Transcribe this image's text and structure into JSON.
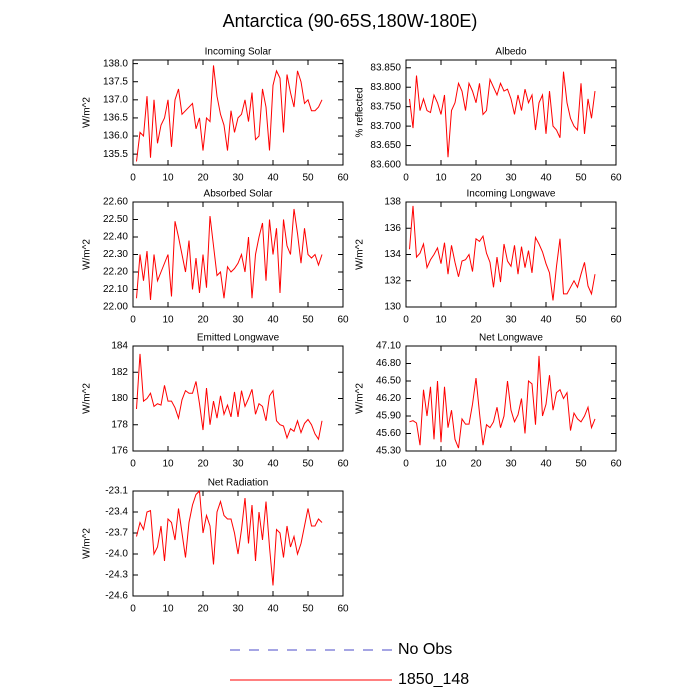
{
  "title": "Antarctica (90-65S,180W-180E)",
  "legend": [
    {
      "label": "No Obs",
      "color": "#4b4bc8",
      "dash": true
    },
    {
      "label": "1850_148",
      "color": "#ff0000",
      "dash": false
    }
  ],
  "chart_data": [
    {
      "type": "line",
      "title": "Incoming Solar",
      "ylabel": "W/m^2",
      "color": "#ff0000",
      "x": [
        1,
        2,
        3,
        4,
        5,
        6,
        7,
        8,
        9,
        10,
        11,
        12,
        13,
        14,
        15,
        16,
        17,
        18,
        19,
        20,
        21,
        22,
        23,
        24,
        25,
        26,
        27,
        28,
        29,
        30,
        31,
        32,
        33,
        34,
        35,
        36,
        37,
        38,
        39,
        40,
        41,
        42,
        43,
        44,
        45,
        46,
        47,
        48,
        49,
        50,
        51,
        52,
        53,
        54
      ],
      "values": [
        135.3,
        136.1,
        136.0,
        137.1,
        135.4,
        137.0,
        135.8,
        136.3,
        136.5,
        137.0,
        135.7,
        137.0,
        137.3,
        136.6,
        136.7,
        136.8,
        136.9,
        136.2,
        136.5,
        135.6,
        136.5,
        136.4,
        137.95,
        137.1,
        136.6,
        136.3,
        135.6,
        136.7,
        136.1,
        136.5,
        136.6,
        137.0,
        136.4,
        137.2,
        135.9,
        136.0,
        137.3,
        136.8,
        135.6,
        137.4,
        137.8,
        137.6,
        136.1,
        137.7,
        137.2,
        136.8,
        137.8,
        137.5,
        136.9,
        137.0,
        136.7,
        136.7,
        136.8,
        137.0
      ],
      "xlim": [
        0,
        60
      ],
      "xticks": [
        0,
        10,
        20,
        30,
        40,
        50,
        60
      ],
      "ylim": [
        135.2,
        138.1
      ],
      "yticks": [
        135.5,
        {
          "value": 136,
          "label": "136.0"
        },
        136.5,
        {
          "value": 137,
          "label": "137.0"
        },
        137.5,
        {
          "value": 138,
          "label": "138.0"
        }
      ]
    },
    {
      "type": "line",
      "title": "Albedo",
      "ylabel": "% reflected",
      "color": "#ff0000",
      "x": [
        1,
        2,
        3,
        4,
        5,
        6,
        7,
        8,
        9,
        10,
        11,
        12,
        13,
        14,
        15,
        16,
        17,
        18,
        19,
        20,
        21,
        22,
        23,
        24,
        25,
        26,
        27,
        28,
        29,
        30,
        31,
        32,
        33,
        34,
        35,
        36,
        37,
        38,
        39,
        40,
        41,
        42,
        43,
        44,
        45,
        46,
        47,
        48,
        49,
        50,
        51,
        52,
        53,
        54
      ],
      "values": [
        83.77,
        83.695,
        83.83,
        83.74,
        83.77,
        83.74,
        83.735,
        83.78,
        83.76,
        83.73,
        83.78,
        83.62,
        83.74,
        83.76,
        83.81,
        83.79,
        83.74,
        83.81,
        83.79,
        83.76,
        83.81,
        83.73,
        83.74,
        83.82,
        83.8,
        83.78,
        83.81,
        83.79,
        83.795,
        83.77,
        83.73,
        83.78,
        83.74,
        83.795,
        83.76,
        83.78,
        83.69,
        83.76,
        83.78,
        83.68,
        83.79,
        83.7,
        83.69,
        83.67,
        83.84,
        83.76,
        83.72,
        83.7,
        83.69,
        83.81,
        83.68,
        83.77,
        83.72,
        83.79
      ],
      "xlim": [
        0,
        60
      ],
      "xticks": [
        0,
        10,
        20,
        30,
        40,
        50,
        60
      ],
      "ylim": [
        83.6,
        83.87
      ],
      "yticks": [
        {
          "value": 83.6,
          "label": "83.600"
        },
        {
          "value": 83.65,
          "label": "83.650"
        },
        {
          "value": 83.7,
          "label": "83.700"
        },
        {
          "value": 83.75,
          "label": "83.750"
        },
        {
          "value": 83.8,
          "label": "83.800"
        },
        {
          "value": 83.85,
          "label": "83.850"
        }
      ]
    },
    {
      "type": "line",
      "title": "Absorbed Solar",
      "ylabel": "W/m^2",
      "color": "#ff0000",
      "x": [
        1,
        2,
        3,
        4,
        5,
        6,
        7,
        8,
        9,
        10,
        11,
        12,
        13,
        14,
        15,
        16,
        17,
        18,
        19,
        20,
        21,
        22,
        23,
        24,
        25,
        26,
        27,
        28,
        29,
        30,
        31,
        32,
        33,
        34,
        35,
        36,
        37,
        38,
        39,
        40,
        41,
        42,
        43,
        44,
        45,
        46,
        47,
        48,
        49,
        50,
        51,
        52,
        53,
        54
      ],
      "values": [
        22.05,
        22.3,
        22.15,
        22.32,
        22.04,
        22.3,
        22.15,
        22.2,
        22.25,
        22.3,
        22.06,
        22.49,
        22.4,
        22.3,
        22.2,
        22.38,
        22.1,
        22.28,
        22.08,
        22.3,
        22.11,
        22.52,
        22.35,
        22.18,
        22.2,
        22.05,
        22.23,
        22.2,
        22.22,
        22.25,
        22.3,
        22.2,
        22.4,
        22.05,
        22.3,
        22.4,
        22.48,
        22.15,
        22.5,
        22.3,
        22.45,
        22.08,
        22.5,
        22.35,
        22.3,
        22.56,
        22.42,
        22.25,
        22.45,
        22.3,
        22.28,
        22.3,
        22.24,
        22.3
      ],
      "xlim": [
        0,
        60
      ],
      "xticks": [
        0,
        10,
        20,
        30,
        40,
        50,
        60
      ],
      "ylim": [
        22.0,
        22.6
      ],
      "yticks": [
        {
          "value": 22.0,
          "label": "22.00"
        },
        {
          "value": 22.1,
          "label": "22.10"
        },
        {
          "value": 22.2,
          "label": "22.20"
        },
        {
          "value": 22.3,
          "label": "22.30"
        },
        {
          "value": 22.4,
          "label": "22.40"
        },
        {
          "value": 22.5,
          "label": "22.50"
        },
        {
          "value": 22.6,
          "label": "22.60"
        }
      ]
    },
    {
      "type": "line",
      "title": "Incoming Longwave",
      "ylabel": "W/m^2",
      "color": "#ff0000",
      "x": [
        1,
        2,
        3,
        4,
        5,
        6,
        7,
        8,
        9,
        10,
        11,
        12,
        13,
        14,
        15,
        16,
        17,
        18,
        19,
        20,
        21,
        22,
        23,
        24,
        25,
        26,
        27,
        28,
        29,
        30,
        31,
        32,
        33,
        34,
        35,
        36,
        37,
        38,
        39,
        40,
        41,
        42,
        43,
        44,
        45,
        46,
        47,
        48,
        49,
        50,
        51,
        52,
        53,
        54
      ],
      "values": [
        134.4,
        137.7,
        133.8,
        134.1,
        134.8,
        133.0,
        133.6,
        134.0,
        134.5,
        133.3,
        134.9,
        132.5,
        134.7,
        133.4,
        132.3,
        133.5,
        133.6,
        134.0,
        132.7,
        135.2,
        135.0,
        135.4,
        134.1,
        133.4,
        131.5,
        133.8,
        131.9,
        134.8,
        133.5,
        133.1,
        134.7,
        132.5,
        134.6,
        133.0,
        134.3,
        132.6,
        135.3,
        134.8,
        134.2,
        133.3,
        132.6,
        130.5,
        133.1,
        135.2,
        131.0,
        131.0,
        131.5,
        132.0,
        131.5,
        132.5,
        133.4,
        131.6,
        131.0,
        132.5
      ],
      "xlim": [
        0,
        60
      ],
      "xticks": [
        0,
        10,
        20,
        30,
        40,
        50,
        60
      ],
      "ylim": [
        130,
        138
      ],
      "yticks": [
        130,
        132,
        134,
        136,
        138
      ]
    },
    {
      "type": "line",
      "title": "Emitted Longwave",
      "ylabel": "W/m^2",
      "color": "#ff0000",
      "x": [
        1,
        2,
        3,
        4,
        5,
        6,
        7,
        8,
        9,
        10,
        11,
        12,
        13,
        14,
        15,
        16,
        17,
        18,
        19,
        20,
        21,
        22,
        23,
        24,
        25,
        26,
        27,
        28,
        29,
        30,
        31,
        32,
        33,
        34,
        35,
        36,
        37,
        38,
        39,
        40,
        41,
        42,
        43,
        44,
        45,
        46,
        47,
        48,
        49,
        50,
        51,
        52,
        53,
        54
      ],
      "values": [
        179.2,
        183.4,
        179.8,
        180.0,
        180.4,
        179.4,
        179.6,
        179.5,
        181.0,
        179.8,
        179.8,
        179.3,
        178.5,
        179.9,
        180.6,
        180.4,
        180.4,
        181.3,
        179.6,
        177.6,
        180.8,
        178.0,
        179.8,
        178.5,
        180.2,
        178.8,
        179.5,
        178.6,
        180.5,
        178.6,
        180.6,
        179.4,
        180.0,
        180.7,
        178.8,
        179.6,
        179.4,
        178.3,
        180.2,
        180.6,
        178.3,
        178.0,
        177.9,
        177.0,
        177.7,
        177.5,
        178.3,
        177.4,
        178.1,
        178.4,
        178.0,
        177.3,
        176.9,
        178.3
      ],
      "xlim": [
        0,
        60
      ],
      "xticks": [
        0,
        10,
        20,
        30,
        40,
        50,
        60
      ],
      "ylim": [
        176,
        184
      ],
      "yticks": [
        176,
        178,
        180,
        182,
        184
      ]
    },
    {
      "type": "line",
      "title": "Net Longwave",
      "ylabel": "W/m^2",
      "color": "#ff0000",
      "x": [
        1,
        2,
        3,
        4,
        5,
        6,
        7,
        8,
        9,
        10,
        11,
        12,
        13,
        14,
        15,
        16,
        17,
        18,
        19,
        20,
        21,
        22,
        23,
        24,
        25,
        26,
        27,
        28,
        29,
        30,
        31,
        32,
        33,
        34,
        35,
        36,
        37,
        38,
        39,
        40,
        41,
        42,
        43,
        44,
        45,
        46,
        47,
        48,
        49,
        50,
        51,
        52,
        53,
        54
      ],
      "values": [
        45.8,
        45.82,
        45.78,
        45.4,
        46.35,
        45.9,
        46.4,
        45.5,
        46.5,
        45.45,
        46.4,
        45.7,
        46.0,
        45.5,
        45.35,
        45.85,
        45.76,
        45.76,
        46.1,
        46.55,
        45.95,
        45.4,
        45.75,
        45.7,
        45.8,
        46.05,
        45.7,
        45.9,
        46.5,
        46.0,
        45.8,
        45.92,
        46.2,
        45.6,
        46.5,
        46.45,
        45.75,
        46.93,
        45.9,
        46.1,
        46.6,
        46.0,
        46.3,
        46.35,
        46.2,
        46.3,
        45.65,
        45.95,
        45.85,
        45.8,
        45.9,
        46.05,
        45.7,
        45.85
      ],
      "xlim": [
        0,
        60
      ],
      "xticks": [
        0,
        10,
        20,
        30,
        40,
        50,
        60
      ],
      "ylim": [
        45.3,
        47.1
      ],
      "yticks": [
        {
          "value": 45.3,
          "label": "45.30"
        },
        {
          "value": 45.6,
          "label": "45.60"
        },
        {
          "value": 45.9,
          "label": "45.90"
        },
        {
          "value": 46.2,
          "label": "46.20"
        },
        {
          "value": 46.5,
          "label": "46.50"
        },
        {
          "value": 46.8,
          "label": "46.80"
        },
        {
          "value": 47.1,
          "label": "47.10"
        }
      ]
    },
    {
      "type": "line",
      "title": "Net Radiation",
      "ylabel": "W/m^2",
      "color": "#ff0000",
      "x": [
        1,
        2,
        3,
        4,
        5,
        6,
        7,
        8,
        9,
        10,
        11,
        12,
        13,
        14,
        15,
        16,
        17,
        18,
        19,
        20,
        21,
        22,
        23,
        24,
        25,
        26,
        27,
        28,
        29,
        30,
        31,
        32,
        33,
        34,
        35,
        36,
        37,
        38,
        39,
        40,
        41,
        42,
        43,
        44,
        45,
        46,
        47,
        48,
        49,
        50,
        51,
        52,
        53,
        54
      ],
      "values": [
        -23.75,
        -23.55,
        -23.65,
        -23.4,
        -23.38,
        -24.0,
        -23.9,
        -23.6,
        -24.1,
        -23.5,
        -23.55,
        -23.8,
        -23.35,
        -23.7,
        -24.05,
        -23.55,
        -23.3,
        -23.15,
        -23.1,
        -23.7,
        -23.45,
        -23.6,
        -24.15,
        -23.4,
        -23.25,
        -23.45,
        -23.5,
        -23.5,
        -23.7,
        -24.0,
        -23.65,
        -23.2,
        -23.85,
        -23.3,
        -24.1,
        -23.4,
        -23.8,
        -23.25,
        -23.9,
        -24.45,
        -23.65,
        -23.7,
        -24.05,
        -23.6,
        -23.9,
        -23.75,
        -24.0,
        -23.85,
        -23.6,
        -23.35,
        -23.6,
        -23.6,
        -23.5,
        -23.55
      ],
      "xlim": [
        0,
        60
      ],
      "xticks": [
        0,
        10,
        20,
        30,
        40,
        50,
        60
      ],
      "ylim": [
        -24.6,
        -23.1
      ],
      "yticks": [
        -24.6,
        -24.3,
        {
          "value": -24.0,
          "label": "-24.0"
        },
        -23.7,
        -23.4,
        -23.1
      ]
    }
  ]
}
